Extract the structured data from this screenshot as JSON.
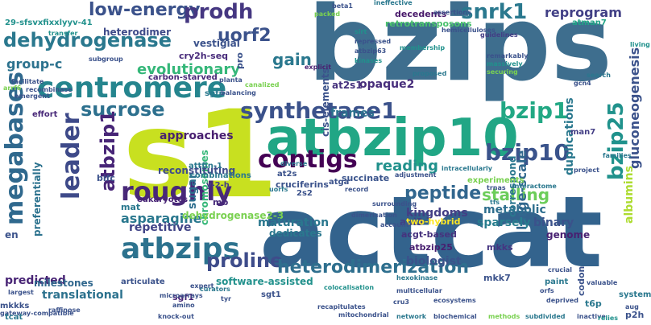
{
  "words": [
    {
      "text": "bzips",
      "color": "#3e6e8e",
      "vertical": false
    },
    {
      "text": "s1",
      "color": "#c8e020",
      "vertical": false
    },
    {
      "text": "actcat",
      "color": "#33638d",
      "vertical": false
    },
    {
      "text": "atbzip10",
      "color": "#21a685",
      "vertical": false
    },
    {
      "text": "dehydrogenase",
      "color": "#2a788e",
      "vertical": false
    },
    {
      "text": "centromere",
      "color": "#25858e",
      "vertical": false
    },
    {
      "text": "sucrose",
      "color": "#2d708e",
      "vertical": false
    },
    {
      "text": "low-energy",
      "color": "#3b528b",
      "vertical": false
    },
    {
      "text": "prodh",
      "color": "#453781",
      "vertical": false
    },
    {
      "text": "uorf2",
      "color": "#3b528b",
      "vertical": false
    },
    {
      "text": "snrk1",
      "color": "#2a788e",
      "vertical": false
    },
    {
      "text": "reprogram",
      "color": "#424086",
      "vertical": false
    },
    {
      "text": "group-c",
      "color": "#2c728e",
      "vertical": false
    },
    {
      "text": "evolutionary",
      "color": "#35b779",
      "vertical": false
    },
    {
      "text": "gain",
      "color": "#2a788e",
      "vertical": false
    },
    {
      "text": "synthetase1",
      "color": "#3b528b",
      "vertical": false
    },
    {
      "text": "bzip1",
      "color": "#22a884",
      "vertical": false
    },
    {
      "text": "bzip25",
      "color": "#20928c",
      "vertical": true
    },
    {
      "text": "leader",
      "color": "#3e4a89",
      "vertical": true
    },
    {
      "text": "megabases",
      "color": "#30698e",
      "vertical": true
    },
    {
      "text": "atbzip1",
      "color": "#482677",
      "vertical": true
    },
    {
      "text": "contigs",
      "color": "#440154",
      "vertical": false
    },
    {
      "text": "bzip10",
      "color": "#3a538b",
      "vertical": false
    },
    {
      "text": "roughly",
      "color": "#482878",
      "vertical": false
    },
    {
      "text": "atbzips",
      "color": "#2c728e",
      "vertical": false
    },
    {
      "text": "asparagine",
      "color": "#2a788e",
      "vertical": false
    },
    {
      "text": "proline",
      "color": "#3e4c8a",
      "vertical": false
    },
    {
      "text": "heterodimerization",
      "color": "#2e6f8e",
      "vertical": false
    },
    {
      "text": "stalling",
      "color": "#6ccd5a",
      "vertical": false
    },
    {
      "text": "peptide",
      "color": "#31668e",
      "vertical": false
    },
    {
      "text": "reading",
      "color": "#21918c",
      "vertical": false
    },
    {
      "text": "frames",
      "color": "#2c728e",
      "vertical": false
    },
    {
      "text": "metabolic",
      "color": "#2e6e8e",
      "vertical": false
    },
    {
      "text": "gluconeogenesis",
      "color": "#3b528b",
      "vertical": true
    },
    {
      "text": "large-scale",
      "color": "#31688e",
      "vertical": true
    },
    {
      "text": "duplications",
      "color": "#2a788e",
      "vertical": true
    },
    {
      "text": "sugar",
      "color": "#2e6e8e",
      "vertical": true
    },
    {
      "text": "chromosomes",
      "color": "#35b779",
      "vertical": true
    },
    {
      "text": "dehydrogenase2-3",
      "color": "#7ad151",
      "vertical": false
    },
    {
      "text": "repetitive",
      "color": "#414487",
      "vertical": false
    },
    {
      "text": "translational",
      "color": "#2c728e",
      "vertical": false
    },
    {
      "text": "predicted",
      "color": "#482475",
      "vertical": false
    },
    {
      "text": "milestones",
      "color": "#31688e",
      "vertical": false
    },
    {
      "text": "biologist",
      "color": "#3b528b",
      "vertical": false
    },
    {
      "text": "kingdoms",
      "color": "#433e85",
      "vertical": false
    },
    {
      "text": "sparsely",
      "color": "#287d8e",
      "vertical": false
    },
    {
      "text": "binary",
      "color": "#3b528b",
      "vertical": false
    },
    {
      "text": "approaches",
      "color": "#481f70",
      "vertical": false
    },
    {
      "text": "reconstituting",
      "color": "#3e4c8a",
      "vertical": false
    },
    {
      "text": "maturation",
      "color": "#2a778e",
      "vertical": false
    },
    {
      "text": "dedicates",
      "color": "#2a788e",
      "vertical": false
    },
    {
      "text": "opaque2",
      "color": "#472d7b",
      "vertical": false
    },
    {
      "text": "albumins",
      "color": "#addc30",
      "vertical": true
    },
    {
      "text": "correspond",
      "color": "#2a778e",
      "vertical": true
    },
    {
      "text": "cis-elements",
      "color": "#3b528b",
      "vertical": true
    },
    {
      "text": "heterodimer",
      "color": "#3e4a89",
      "vertical": false
    },
    {
      "text": "vestigial",
      "color": "#3b528b",
      "vertical": false
    },
    {
      "text": "cry2h-seq",
      "color": "#472a7a",
      "vertical": false
    },
    {
      "text": "carbon-starved",
      "color": "#482878",
      "vertical": false
    },
    {
      "text": "decedents",
      "color": "#48186a",
      "vertical": false
    },
    {
      "text": "retrotransposons",
      "color": "#4ac16d",
      "vertical": false
    },
    {
      "text": "at2s1",
      "color": "#46327e",
      "vertical": false
    },
    {
      "text": "abi3",
      "color": "#433e85",
      "vertical": false
    },
    {
      "text": "succinate",
      "color": "#3a548c",
      "vertical": false
    },
    {
      "text": "mkks",
      "color": "#453581",
      "vertical": false
    },
    {
      "text": "genome",
      "color": "#482071",
      "vertical": false
    },
    {
      "text": "mkk7",
      "color": "#3b528b",
      "vertical": false
    },
    {
      "text": "codon",
      "color": "#3b528b",
      "vertical": true
    },
    {
      "text": "t6p",
      "color": "#2a788e",
      "vertical": false
    },
    {
      "text": "sgf1",
      "color": "#482878",
      "vertical": false
    },
    {
      "text": "software-assisted",
      "color": "#21918c",
      "vertical": false
    },
    {
      "text": "p2h",
      "color": "#3b528b",
      "vertical": false
    },
    {
      "text": "systems",
      "color": "#2a788e",
      "vertical": false
    },
    {
      "text": "atbzip25",
      "color": "#481f70",
      "vertical": false
    },
    {
      "text": "acgt-based",
      "color": "#46327e",
      "vertical": false
    },
    {
      "text": "two-hybrid",
      "color": "#fde725",
      "vertical": false
    },
    {
      "text": "cruciferins",
      "color": "#3b528b",
      "vertical": false
    },
    {
      "text": "mat",
      "color": "#2a788e",
      "vertical": false
    },
    {
      "text": "mb",
      "color": "#472a7a",
      "vertical": false
    },
    {
      "text": "y-2-h",
      "color": "#433e85",
      "vertical": false
    },
    {
      "text": "attfin-1",
      "color": "#2a788e",
      "vertical": false
    },
    {
      "text": "eukaryotes",
      "color": "#482475",
      "vertical": false
    },
    {
      "text": "combinations",
      "color": "#2a788e",
      "vertical": false
    },
    {
      "text": "bifc",
      "color": "#3b528b",
      "vertical": false
    },
    {
      "text": "preferentially",
      "color": "#2c728e",
      "vertical": true
    },
    {
      "text": "sgfp",
      "color": "#2a788e",
      "vertical": false
    },
    {
      "text": "effort",
      "color": "#482878",
      "vertical": false
    },
    {
      "text": "facilitate",
      "color": "#3b528b",
      "vertical": false
    },
    {
      "text": "emergent",
      "color": "#3b528b",
      "vertical": false
    },
    {
      "text": "29-sfsvxfixxlyyv-41",
      "color": "#21918c",
      "vertical": false
    },
    {
      "text": "ineffective",
      "color": "#2a788e",
      "vertical": false
    },
    {
      "text": "assertions",
      "color": "#3b528b",
      "vertical": false
    },
    {
      "text": "interactome",
      "color": "#2a788e",
      "vertical": false
    },
    {
      "text": "sirt",
      "color": "#21918c",
      "vertical": false
    },
    {
      "text": "hemicelluloses",
      "color": "#3b528b",
      "vertical": false
    },
    {
      "text": "guidelines",
      "color": "#433e85",
      "vertical": false
    },
    {
      "text": "atman7",
      "color": "#20a386",
      "vertical": false
    },
    {
      "text": "repressed",
      "color": "#3b528b",
      "vertical": false
    },
    {
      "text": "atbzip63",
      "color": "#3b528b",
      "vertical": false
    },
    {
      "text": "membership",
      "color": "#21918c",
      "vertical": false
    },
    {
      "text": "remarkably",
      "color": "#3b528b",
      "vertical": false
    },
    {
      "text": "massively",
      "color": "#21918c",
      "vertical": false
    },
    {
      "text": "securing",
      "color": "#7ad151",
      "vertical": false
    },
    {
      "text": "proposed",
      "color": "#2a788e",
      "vertical": false
    },
    {
      "text": "explicit",
      "color": "#481f70",
      "vertical": false
    },
    {
      "text": "kinases",
      "color": "#21918c",
      "vertical": false
    },
    {
      "text": "search",
      "color": "#2a788e",
      "vertical": false
    },
    {
      "text": "gcn4",
      "color": "#3b528b",
      "vertical": false
    },
    {
      "text": "man7",
      "color": "#433e85",
      "vertical": false
    },
    {
      "text": "families",
      "color": "#2a788e",
      "vertical": false
    },
    {
      "text": "project",
      "color": "#3b528b",
      "vertical": false
    },
    {
      "text": "intracellularly",
      "color": "#2a788e",
      "vertical": false
    },
    {
      "text": "adjustment",
      "color": "#3b528b",
      "vertical": false
    },
    {
      "text": "experiments",
      "color": "#7ad151",
      "vertical": false
    },
    {
      "text": "trnas",
      "color": "#3b528b",
      "vertical": false
    },
    {
      "text": "record",
      "color": "#3b528b",
      "vertical": false
    },
    {
      "text": "2s2",
      "color": "#3b528b",
      "vertical": false
    },
    {
      "text": "atga",
      "color": "#3b528b",
      "vertical": false
    },
    {
      "text": "at2s",
      "color": "#3b528b",
      "vertical": false
    },
    {
      "text": "uorfs",
      "color": "#2a788e",
      "vertical": false
    },
    {
      "text": "diverse",
      "color": "#2a788e",
      "vertical": false
    },
    {
      "text": "dimerisation",
      "color": "#3b528b",
      "vertical": false
    },
    {
      "text": "tfs",
      "color": "#2a788e",
      "vertical": false
    },
    {
      "text": "account",
      "color": "#3b528b",
      "vertical": false
    },
    {
      "text": "surrounding",
      "color": "#3b528b",
      "vertical": false
    },
    {
      "text": "hexokinase",
      "color": "#2a788e",
      "vertical": false
    },
    {
      "text": "colocalisation",
      "color": "#21918c",
      "vertical": false
    },
    {
      "text": "multicellular",
      "color": "#3b528b",
      "vertical": false
    },
    {
      "text": "ecosystems",
      "color": "#3b528b",
      "vertical": false
    },
    {
      "text": "orfs",
      "color": "#3b528b",
      "vertical": false
    },
    {
      "text": "deprived",
      "color": "#3b528b",
      "vertical": false
    },
    {
      "text": "crucial",
      "color": "#3b528b",
      "vertical": false
    },
    {
      "text": "paint",
      "color": "#2a788e",
      "vertical": false
    },
    {
      "text": "valuable",
      "color": "#3b528b",
      "vertical": false
    },
    {
      "text": "recapitulates",
      "color": "#3b528b",
      "vertical": false
    },
    {
      "text": "mitochondrial",
      "color": "#3b528b",
      "vertical": false
    },
    {
      "text": "biochemical",
      "color": "#3b528b",
      "vertical": false
    },
    {
      "text": "methods",
      "color": "#7ad151",
      "vertical": false
    },
    {
      "text": "subdivided",
      "color": "#2a788e",
      "vertical": false
    },
    {
      "text": "inactive",
      "color": "#3b528b",
      "vertical": false
    },
    {
      "text": "network",
      "color": "#2a788e",
      "vertical": false
    },
    {
      "text": "cru3",
      "color": "#3b528b",
      "vertical": false
    },
    {
      "text": "knock-out",
      "color": "#3b528b",
      "vertical": false
    },
    {
      "text": "expert",
      "color": "#3b528b",
      "vertical": false
    },
    {
      "text": "amino",
      "color": "#3b528b",
      "vertical": false
    },
    {
      "text": "tyr",
      "color": "#3b528b",
      "vertical": false
    },
    {
      "text": "microarrays",
      "color": "#3b528b",
      "vertical": false
    },
    {
      "text": "articulate",
      "color": "#3b528b",
      "vertical": false
    },
    {
      "text": "curators",
      "color": "#2a788e",
      "vertical": false
    },
    {
      "text": "mkkks",
      "color": "#3b528b",
      "vertical": false
    },
    {
      "text": "gateway-compatible",
      "color": "#3b528b",
      "vertical": false
    },
    {
      "text": "raffinose",
      "color": "#3b528b",
      "vertical": false
    },
    {
      "text": "tcat",
      "color": "#2a788e",
      "vertical": false
    },
    {
      "text": "sgt1",
      "color": "#3b528b",
      "vertical": false
    },
    {
      "text": "subgroup",
      "color": "#3b528b",
      "vertical": false
    },
    {
      "text": "recombinase",
      "color": "#3b528b",
      "vertical": false
    },
    {
      "text": "planta",
      "color": "#3b528b",
      "vertical": false
    },
    {
      "text": "balancing",
      "color": "#3b528b",
      "vertical": false
    },
    {
      "text": "canalized",
      "color": "#7ad151",
      "vertical": false
    },
    {
      "text": "packed",
      "color": "#7ad151",
      "vertical": false
    },
    {
      "text": "beta1",
      "color": "#3b528b",
      "vertical": false
    },
    {
      "text": "transfer",
      "color": "#21918c",
      "vertical": false
    },
    {
      "text": "arrf6",
      "color": "#7ad151",
      "vertical": false
    },
    {
      "text": "pro",
      "color": "#3b528b",
      "vertical": true
    },
    {
      "text": "en",
      "color": "#3b528b",
      "vertical": false
    },
    {
      "text": "largest",
      "color": "#3b528b",
      "vertical": false
    },
    {
      "text": "living",
      "color": "#21918c",
      "vertical": false
    },
    {
      "text": "aug",
      "color": "#3b528b",
      "vertical": false
    },
    {
      "text": "relies",
      "color": "#21918c",
      "vertical": false
    }
  ]
}
